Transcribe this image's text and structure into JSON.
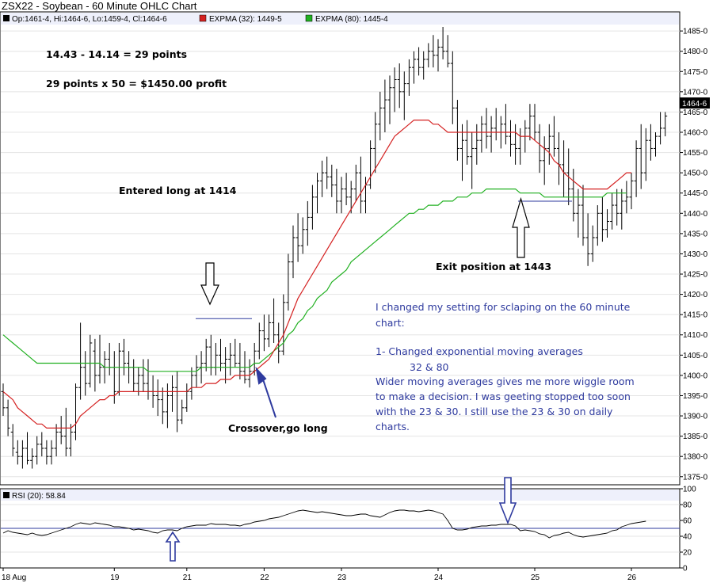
{
  "chart_data": {
    "type": "ohlc",
    "title": "ZSX22 - Soybean - 60 Minute OHLC Chart",
    "legend": {
      "ohlc": "Op:1461-4, Hi:1464-6, Lo:1459-4, Cl:1464-6",
      "ema_fast": "EXPMA (32): 1449-5",
      "ema_slow": "EXPMA (80): 1445-4"
    },
    "colors": {
      "bars": "#000000",
      "ema_fast": "#d42020",
      "ema_slow": "#20b020",
      "annotation": "#2e3a9e",
      "rsi_line": "#000000"
    },
    "y_ticks": [
      "1485-0",
      "1480-0",
      "1475-0",
      "1470-0",
      "1465-0",
      "1460-0",
      "1455-0",
      "1450-0",
      "1445-0",
      "1440-0",
      "1435-0",
      "1430-0",
      "1425-0",
      "1420-0",
      "1415-0",
      "1410-0",
      "1405-0",
      "1400-0",
      "1395-0",
      "1390-0",
      "1385-0",
      "1380-0",
      "1375-0"
    ],
    "ylim": [
      1373,
      1486
    ],
    "last_price_label": "1464-6",
    "x_ticks": [
      {
        "label": "18 Aug",
        "bar": 0
      },
      {
        "label": "19",
        "bar": 23
      },
      {
        "label": "21",
        "bar": 38
      },
      {
        "label": "22",
        "bar": 54
      },
      {
        "label": "23",
        "bar": 70
      },
      {
        "label": "24",
        "bar": 90
      },
      {
        "label": "25",
        "bar": 110
      },
      {
        "label": "26",
        "bar": 130
      }
    ],
    "bars": [
      [
        1396,
        1398,
        1390,
        1392
      ],
      [
        1392,
        1394,
        1385,
        1387
      ],
      [
        1386,
        1388,
        1380,
        1382
      ],
      [
        1381,
        1384,
        1378,
        1380
      ],
      [
        1380,
        1384,
        1377,
        1382
      ],
      [
        1382,
        1386,
        1378,
        1379
      ],
      [
        1379,
        1382,
        1377,
        1380
      ],
      [
        1380,
        1385,
        1378,
        1383
      ],
      [
        1383,
        1386,
        1380,
        1382
      ],
      [
        1382,
        1384,
        1378,
        1380
      ],
      [
        1380,
        1384,
        1378,
        1382
      ],
      [
        1382,
        1388,
        1380,
        1386
      ],
      [
        1386,
        1390,
        1383,
        1385
      ],
      [
        1385,
        1392,
        1380,
        1382
      ],
      [
        1382,
        1388,
        1380,
        1386
      ],
      [
        1386,
        1398,
        1384,
        1397
      ],
      [
        1397,
        1413,
        1394,
        1402
      ],
      [
        1402,
        1406,
        1395,
        1398
      ],
      [
        1398,
        1410,
        1397,
        1408
      ],
      [
        1406,
        1409,
        1396,
        1400
      ],
      [
        1400,
        1410,
        1398,
        1402
      ],
      [
        1402,
        1406,
        1398,
        1404
      ],
      [
        1404,
        1408,
        1400,
        1402
      ],
      [
        1402,
        1406,
        1393,
        1396
      ],
      [
        1396,
        1408,
        1395,
        1406
      ],
      [
        1406,
        1409,
        1400,
        1403
      ],
      [
        1403,
        1406,
        1398,
        1402
      ],
      [
        1402,
        1404,
        1396,
        1398
      ],
      [
        1398,
        1402,
        1395,
        1400
      ],
      [
        1400,
        1404,
        1396,
        1398
      ],
      [
        1398,
        1404,
        1394,
        1396
      ],
      [
        1396,
        1400,
        1392,
        1395
      ],
      [
        1395,
        1399,
        1390,
        1394
      ],
      [
        1394,
        1397,
        1388,
        1391
      ],
      [
        1391,
        1398,
        1387,
        1395
      ],
      [
        1395,
        1400,
        1391,
        1397
      ],
      [
        1397,
        1401,
        1386,
        1389
      ],
      [
        1389,
        1394,
        1388,
        1392
      ],
      [
        1392,
        1398,
        1391,
        1396
      ],
      [
        1396,
        1402,
        1394,
        1400
      ],
      [
        1400,
        1405,
        1397,
        1402
      ],
      [
        1402,
        1406,
        1398,
        1403
      ],
      [
        1403,
        1409,
        1401,
        1407
      ],
      [
        1407,
        1410,
        1400,
        1402
      ],
      [
        1402,
        1408,
        1400,
        1405
      ],
      [
        1405,
        1409,
        1401,
        1403
      ],
      [
        1403,
        1407,
        1398,
        1404
      ],
      [
        1404,
        1408,
        1400,
        1405
      ],
      [
        1405,
        1409,
        1402,
        1403
      ],
      [
        1403,
        1408,
        1399,
        1401
      ],
      [
        1401,
        1406,
        1398,
        1399
      ],
      [
        1399,
        1404,
        1397,
        1401
      ],
      [
        1401,
        1408,
        1400,
        1406
      ],
      [
        1406,
        1413,
        1404,
        1411
      ],
      [
        1411,
        1415,
        1406,
        1409
      ],
      [
        1409,
        1415,
        1407,
        1413
      ],
      [
        1413,
        1419,
        1408,
        1410
      ],
      [
        1410,
        1413,
        1403,
        1406
      ],
      [
        1406,
        1420,
        1405,
        1418
      ],
      [
        1418,
        1430,
        1416,
        1428
      ],
      [
        1428,
        1437,
        1424,
        1434
      ],
      [
        1434,
        1440,
        1428,
        1432
      ],
      [
        1432,
        1439,
        1430,
        1436
      ],
      [
        1436,
        1443,
        1432,
        1439
      ],
      [
        1439,
        1447,
        1436,
        1444
      ],
      [
        1444,
        1450,
        1440,
        1448
      ],
      [
        1448,
        1453,
        1444,
        1450
      ],
      [
        1450,
        1454,
        1446,
        1449
      ],
      [
        1449,
        1452,
        1444,
        1447
      ],
      [
        1447,
        1451,
        1440,
        1443
      ],
      [
        1443,
        1449,
        1440,
        1446
      ],
      [
        1446,
        1450,
        1442,
        1444
      ],
      [
        1444,
        1448,
        1440,
        1446
      ],
      [
        1446,
        1452,
        1443,
        1450
      ],
      [
        1450,
        1454,
        1440,
        1443
      ],
      [
        1443,
        1449,
        1440,
        1447
      ],
      [
        1447,
        1458,
        1446,
        1456
      ],
      [
        1456,
        1465,
        1450,
        1462
      ],
      [
        1462,
        1470,
        1458,
        1466
      ],
      [
        1466,
        1473,
        1460,
        1468
      ],
      [
        1468,
        1474,
        1462,
        1471
      ],
      [
        1471,
        1476,
        1465,
        1473
      ],
      [
        1473,
        1477,
        1466,
        1470
      ],
      [
        1470,
        1475,
        1463,
        1472
      ],
      [
        1472,
        1478,
        1469,
        1476
      ],
      [
        1476,
        1480,
        1472,
        1478
      ],
      [
        1478,
        1481,
        1474,
        1476
      ],
      [
        1476,
        1480,
        1473,
        1478
      ],
      [
        1478,
        1482,
        1476,
        1480
      ],
      [
        1480,
        1484,
        1476,
        1479
      ],
      [
        1479,
        1483,
        1475,
        1481
      ],
      [
        1481,
        1486,
        1478,
        1480
      ],
      [
        1480,
        1484,
        1476,
        1477
      ],
      [
        1477,
        1480,
        1462,
        1466
      ],
      [
        1466,
        1468,
        1453,
        1456
      ],
      [
        1456,
        1462,
        1448,
        1458
      ],
      [
        1458,
        1463,
        1452,
        1454
      ],
      [
        1454,
        1460,
        1446,
        1456
      ],
      [
        1456,
        1462,
        1452,
        1458
      ],
      [
        1458,
        1464,
        1455,
        1462
      ],
      [
        1462,
        1466,
        1456,
        1459
      ],
      [
        1459,
        1464,
        1455,
        1461
      ],
      [
        1461,
        1466,
        1458,
        1460
      ],
      [
        1460,
        1464,
        1456,
        1462
      ],
      [
        1462,
        1467,
        1457,
        1459
      ],
      [
        1459,
        1463,
        1454,
        1457
      ],
      [
        1457,
        1462,
        1452,
        1456
      ],
      [
        1456,
        1461,
        1452,
        1459
      ],
      [
        1459,
        1463,
        1455,
        1461
      ],
      [
        1461,
        1467,
        1458,
        1464
      ],
      [
        1464,
        1467,
        1458,
        1460
      ],
      [
        1460,
        1462,
        1450,
        1453
      ],
      [
        1453,
        1459,
        1447,
        1456
      ],
      [
        1456,
        1462,
        1452,
        1459
      ],
      [
        1459,
        1464,
        1454,
        1456
      ],
      [
        1456,
        1460,
        1447,
        1452
      ],
      [
        1452,
        1458,
        1444,
        1450
      ],
      [
        1450,
        1456,
        1442,
        1446
      ],
      [
        1446,
        1451,
        1438,
        1440
      ],
      [
        1440,
        1446,
        1434,
        1442
      ],
      [
        1442,
        1447,
        1432,
        1434
      ],
      [
        1434,
        1440,
        1427,
        1430
      ],
      [
        1430,
        1437,
        1428,
        1434
      ],
      [
        1434,
        1442,
        1432,
        1440
      ],
      [
        1440,
        1444,
        1433,
        1436
      ],
      [
        1436,
        1441,
        1434,
        1438
      ],
      [
        1438,
        1445,
        1436,
        1442
      ],
      [
        1442,
        1446,
        1437,
        1440
      ],
      [
        1440,
        1446,
        1436,
        1443
      ],
      [
        1443,
        1448,
        1440,
        1444
      ],
      [
        1444,
        1450,
        1441,
        1448
      ],
      [
        1448,
        1458,
        1444,
        1456
      ],
      [
        1456,
        1462,
        1446,
        1450
      ],
      [
        1450,
        1461,
        1448,
        1458
      ],
      [
        1458,
        1462,
        1453,
        1456
      ],
      [
        1456,
        1460,
        1454,
        1459
      ],
      [
        1459,
        1465,
        1457,
        1461
      ],
      [
        1461,
        1465,
        1459,
        1464
      ]
    ],
    "ema_fast": [
      1396,
      1395,
      1394,
      1392,
      1391,
      1390,
      1389,
      1388,
      1388,
      1387,
      1387,
      1387,
      1387,
      1387,
      1387,
      1388,
      1390,
      1391,
      1392,
      1393,
      1394,
      1394,
      1395,
      1395,
      1396,
      1396,
      1396,
      1396,
      1396,
      1396,
      1396,
      1396,
      1396,
      1396,
      1396,
      1396,
      1396,
      1396,
      1396,
      1397,
      1397,
      1397,
      1398,
      1398,
      1398,
      1399,
      1399,
      1399,
      1400,
      1400,
      1400,
      1400,
      1401,
      1402,
      1403,
      1404,
      1406,
      1408,
      1410,
      1413,
      1416,
      1419,
      1421,
      1423,
      1425,
      1427,
      1429,
      1431,
      1433,
      1435,
      1437,
      1439,
      1441,
      1443,
      1445,
      1447,
      1449,
      1451,
      1453,
      1455,
      1457,
      1459,
      1460,
      1461,
      1462,
      1463,
      1463,
      1463,
      1463,
      1462,
      1462,
      1461,
      1460,
      1460,
      1460,
      1460,
      1460,
      1460,
      1460,
      1460,
      1460,
      1460,
      1460,
      1460,
      1460,
      1460,
      1460,
      1459,
      1459,
      1459,
      1458,
      1457,
      1456,
      1455,
      1453,
      1452,
      1450,
      1449,
      1448,
      1447,
      1446,
      1446,
      1446,
      1446,
      1446,
      1446,
      1447,
      1448,
      1449,
      1450,
      1450
    ],
    "ema_slow": [
      1410,
      1409,
      1408,
      1407,
      1406,
      1405,
      1404,
      1403,
      1403,
      1403,
      1403,
      1403,
      1403,
      1403,
      1403,
      1403,
      1403,
      1403,
      1403,
      1403,
      1403,
      1402,
      1402,
      1402,
      1402,
      1402,
      1402,
      1402,
      1402,
      1402,
      1401,
      1401,
      1401,
      1401,
      1401,
      1401,
      1401,
      1401,
      1401,
      1401,
      1401,
      1402,
      1402,
      1402,
      1402,
      1402,
      1402,
      1402,
      1402,
      1402,
      1402,
      1402,
      1403,
      1403,
      1404,
      1405,
      1406,
      1407,
      1408,
      1410,
      1411,
      1413,
      1414,
      1416,
      1417,
      1419,
      1420,
      1421,
      1423,
      1424,
      1425,
      1426,
      1428,
      1429,
      1430,
      1431,
      1432,
      1433,
      1434,
      1435,
      1436,
      1437,
      1438,
      1439,
      1440,
      1440,
      1441,
      1441,
      1442,
      1442,
      1442,
      1443,
      1443,
      1443,
      1444,
      1444,
      1444,
      1445,
      1445,
      1445,
      1446,
      1446,
      1446,
      1446,
      1446,
      1446,
      1446,
      1445,
      1445,
      1445,
      1445,
      1445,
      1444,
      1444,
      1444,
      1444,
      1444,
      1444,
      1444,
      1444,
      1444,
      1444,
      1444,
      1444,
      1444,
      1445,
      1445,
      1445,
      1445,
      1445
    ],
    "rsi": {
      "label": "RSI (20): 58.84",
      "y_ticks": [
        100,
        80,
        60,
        40,
        20,
        0
      ],
      "ylim": [
        0,
        100
      ],
      "level": 50,
      "values": [
        44,
        47,
        45,
        44,
        43,
        42,
        44,
        42,
        41,
        42,
        44,
        46,
        48,
        50,
        52,
        55,
        57,
        56,
        55,
        57,
        56,
        55,
        54,
        52,
        52,
        51,
        50,
        48,
        49,
        48,
        47,
        45,
        44,
        47,
        48,
        48,
        47,
        50,
        52,
        53,
        54,
        54,
        54,
        56,
        55,
        55,
        55,
        54,
        54,
        53,
        55,
        56,
        58,
        59,
        60,
        62,
        63,
        64,
        66,
        68,
        70,
        72,
        73,
        72,
        71,
        70,
        71,
        70,
        69,
        68,
        67,
        66,
        66,
        67,
        68,
        68,
        66,
        65,
        64,
        67,
        70,
        72,
        73,
        73,
        72,
        72,
        71,
        72,
        73,
        72,
        70,
        68,
        60,
        50,
        48,
        48,
        49,
        51,
        52,
        53,
        53,
        54,
        54,
        55,
        55,
        55,
        53,
        47,
        48,
        47,
        46,
        43,
        42,
        38,
        41,
        42,
        44,
        45,
        42,
        40,
        39,
        40,
        41,
        42,
        43,
        44,
        47,
        48,
        52,
        54,
        56,
        57,
        58,
        59
      ]
    },
    "annotations": {
      "calc_line1": "14.43 - 14.14 = 29 points",
      "calc_line2": "29 points x 50 = $1450.00 profit",
      "entry": "Entered long at 1414",
      "crossover": "Crossover,go long",
      "exit": "Exit position at 1443",
      "note_line1": "I changed my setting for sclaping on the 60 minute",
      "note_line2": "chart:",
      "note_line3": "1- Changed exponential moving averages",
      "note_line4": "32 & 80",
      "note_line5": "Wider moving averages gives me more wiggle room",
      "note_line6": "to make a decision. I was geeting stopped too soon",
      "note_line7": "with the 23 & 30. I still use the 23 & 30 on daily",
      "note_line8": "charts.",
      "entry_price": 1414,
      "exit_price": 1443
    }
  }
}
